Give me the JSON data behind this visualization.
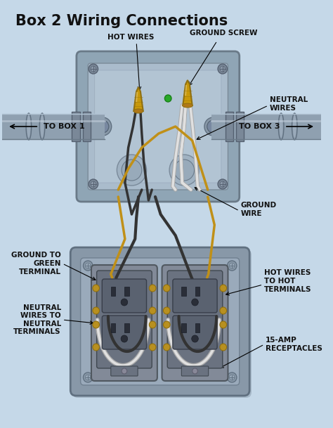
{
  "title": "Box 2 Wiring Connections",
  "background_color": "#c5d8e8",
  "title_color": "#111111",
  "title_fontsize": 15,
  "labels": {
    "hot_wires": "HOT WIRES",
    "ground_screw": "GROUND SCREW",
    "neutral_wires": "NEUTRAL\nWIRES",
    "to_box1": "TO BOX 1",
    "to_box3": "TO BOX 3",
    "ground_wire": "GROUND\nWIRE",
    "ground_terminal": "GROUND TO\nGREEN\nTERMINAL",
    "hot_terminals": "HOT WIRES\nTO HOT\nTERMINALS",
    "neutral_terminals": "NEUTRAL\nWIRES TO\nNEUTRAL\nTERMINALS",
    "receptacles": "15-AMP\nRECEPTACLES"
  },
  "label_fontsize": 7,
  "box_outer": "#8fa5b5",
  "box_inner": "#aabccc",
  "box_face": "#b8cad8",
  "wire_black": "#333333",
  "wire_white": "#e0e0e0",
  "wire_gold": "#c09018",
  "conduit_color": "#8fa0b0",
  "conduit_light": "#b0c2d2",
  "nut_gold": "#c8980a",
  "receptacle_body": "#8090a0",
  "receptacle_dark": "#606878",
  "panel_color": "#8898a8",
  "panel_light": "#9aaabb"
}
